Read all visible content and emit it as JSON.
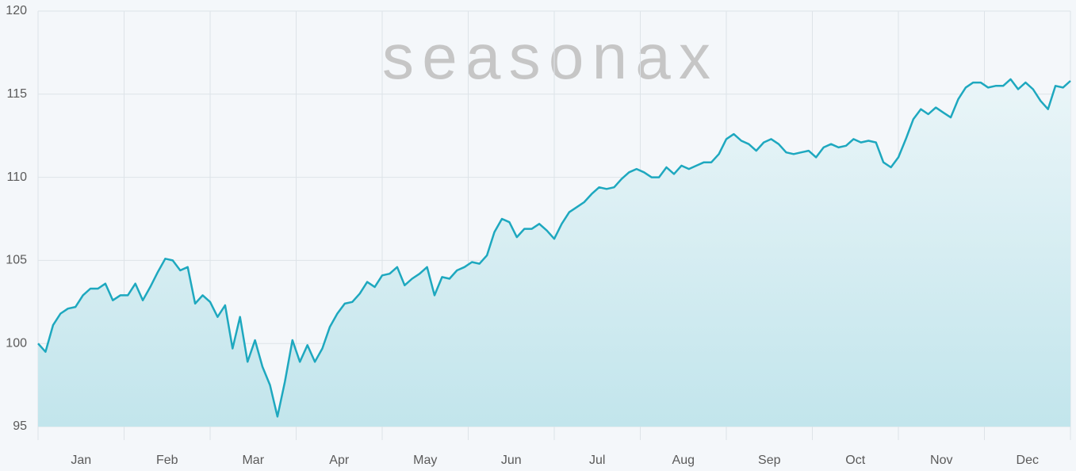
{
  "chart_data": {
    "type": "area",
    "watermark": "seasonax",
    "months": [
      "Jan",
      "Feb",
      "Mar",
      "Apr",
      "May",
      "Jun",
      "Jul",
      "Aug",
      "Sep",
      "Oct",
      "Nov",
      "Dec"
    ],
    "color": "#1ea8bf",
    "fill_top": "#eaf5f8",
    "fill_bottom": "#c2e5ec",
    "ylim": [
      95,
      120
    ],
    "yticks": [
      95,
      100,
      105,
      110,
      115,
      120
    ],
    "grid": true,
    "values": [
      100.0,
      99.5,
      101.1,
      101.8,
      102.1,
      102.2,
      102.9,
      103.3,
      103.3,
      103.6,
      102.6,
      102.9,
      102.9,
      103.6,
      102.6,
      103.4,
      104.3,
      105.1,
      105.0,
      104.4,
      104.6,
      102.4,
      102.9,
      102.5,
      101.6,
      102.3,
      99.7,
      101.6,
      98.9,
      100.2,
      98.6,
      97.5,
      95.6,
      97.7,
      100.2,
      98.9,
      99.9,
      98.9,
      99.7,
      101.0,
      101.8,
      102.4,
      102.5,
      103.0,
      103.7,
      103.4,
      104.1,
      104.2,
      104.6,
      103.5,
      103.9,
      104.2,
      104.6,
      102.9,
      104.0,
      103.9,
      104.4,
      104.6,
      104.9,
      104.8,
      105.3,
      106.7,
      107.5,
      107.3,
      106.4,
      106.9,
      106.9,
      107.2,
      106.8,
      106.3,
      107.2,
      107.9,
      108.2,
      108.5,
      109.0,
      109.4,
      109.3,
      109.4,
      109.9,
      110.3,
      110.5,
      110.3,
      110.0,
      110.0,
      110.6,
      110.2,
      110.7,
      110.5,
      110.7,
      110.9,
      110.9,
      111.4,
      112.3,
      112.6,
      112.2,
      112.0,
      111.6,
      112.1,
      112.3,
      112.0,
      111.5,
      111.4,
      111.5,
      111.6,
      111.2,
      111.8,
      112.0,
      111.8,
      111.9,
      112.3,
      112.1,
      112.2,
      112.1,
      110.9,
      110.6,
      111.2,
      112.3,
      113.5,
      114.1,
      113.8,
      114.2,
      113.9,
      113.6,
      114.7,
      115.4,
      115.7,
      115.7,
      115.4,
      115.5,
      115.5,
      115.9,
      115.3,
      115.7,
      115.3,
      114.6,
      114.1,
      115.5,
      115.4,
      115.8
    ]
  }
}
